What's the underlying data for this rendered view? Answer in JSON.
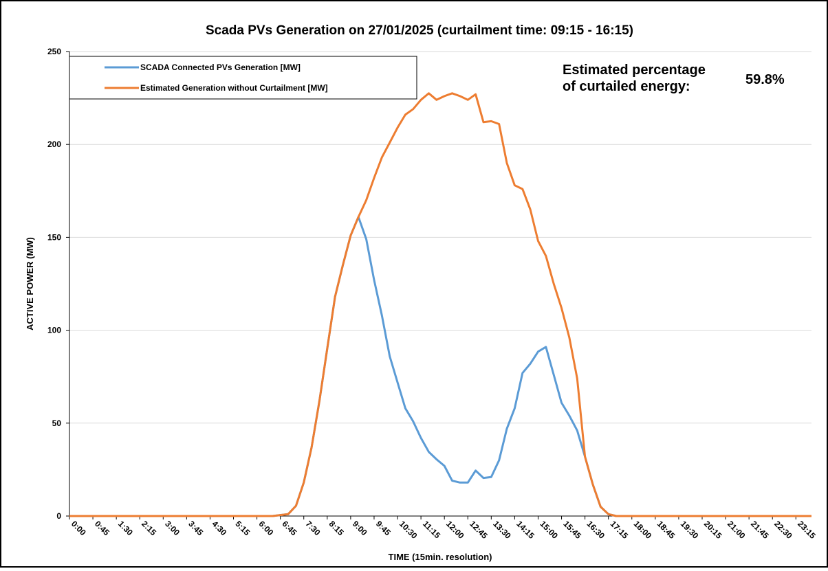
{
  "chart_data": {
    "type": "line",
    "title": "Scada PVs Generation on 27/01/2025 (curtailment time: 09:15 - 16:15)",
    "xlabel": "TIME (15min. resolution)",
    "ylabel": "ACTIVE POWER (MW)",
    "annotation_lines": [
      "Estimated percentage",
      "of curtailed energy:"
    ],
    "annotation_value": "59.8%",
    "categories": [
      "0:00",
      null,
      null,
      "0:45",
      null,
      null,
      "1:30",
      null,
      null,
      "2:15",
      null,
      null,
      "3:00",
      null,
      null,
      "3:45",
      null,
      null,
      "4:30",
      null,
      null,
      "5:15",
      null,
      null,
      "6:00",
      null,
      null,
      "6:45",
      null,
      null,
      "7:30",
      null,
      null,
      "8:15",
      null,
      null,
      "9:00",
      null,
      null,
      "9:45",
      null,
      null,
      "10:30",
      null,
      null,
      "11:15",
      null,
      null,
      "12:00",
      null,
      null,
      "12:45",
      null,
      null,
      "13:30",
      null,
      null,
      "14:15",
      null,
      null,
      "15:00",
      null,
      null,
      "15:45",
      null,
      null,
      "16:30",
      null,
      null,
      "17:15",
      null,
      null,
      "18:00",
      null,
      null,
      "18:45",
      null,
      null,
      "19:30",
      null,
      null,
      "20:15",
      null,
      null,
      "21:00",
      null,
      null,
      "21:45",
      null,
      null,
      "22:30",
      null,
      null,
      "23:15",
      null,
      null
    ],
    "series": [
      {
        "name": "SCADA Connected PVs Generation [MW]",
        "color": "#5b9bd5",
        "values": [
          0,
          0,
          0,
          0,
          0,
          0,
          0,
          0,
          0,
          0,
          0,
          0,
          0,
          0,
          0,
          0,
          0,
          0,
          0,
          0,
          0,
          0,
          0,
          0,
          0,
          0,
          0,
          0.5,
          1,
          5.5,
          18,
          37,
          62,
          90,
          118,
          135,
          151,
          161,
          149,
          127,
          108,
          86,
          72,
          58,
          51,
          42,
          34.5,
          30.5,
          27,
          19,
          18,
          18,
          24.5,
          20.5,
          21,
          30,
          47,
          58,
          77,
          82,
          88.5,
          91,
          76,
          61,
          54,
          46,
          32,
          17,
          5,
          1,
          0,
          0,
          0,
          0,
          0,
          0,
          0,
          0,
          0,
          0,
          0,
          0,
          0,
          0,
          0,
          0,
          0,
          0,
          0,
          0,
          0,
          0,
          0,
          0,
          0,
          0
        ]
      },
      {
        "name": "Estimated Generation without Curtailment [MW]",
        "color": "#ed7d31",
        "values": [
          0,
          0,
          0,
          0,
          0,
          0,
          0,
          0,
          0,
          0,
          0,
          0,
          0,
          0,
          0,
          0,
          0,
          0,
          0,
          0,
          0,
          0,
          0,
          0,
          0,
          0,
          0,
          0.5,
          1,
          5.5,
          18,
          37,
          62,
          90,
          118,
          135,
          151,
          161,
          170,
          182,
          193,
          201,
          209,
          216,
          219,
          224,
          227.5,
          224,
          226,
          227.5,
          226,
          224,
          227,
          212,
          212.5,
          211,
          190,
          178,
          176,
          165,
          148,
          140,
          125,
          112,
          96,
          74,
          32,
          17,
          5,
          1,
          0,
          0,
          0,
          0,
          0,
          0,
          0,
          0,
          0,
          0,
          0,
          0,
          0,
          0,
          0,
          0,
          0,
          0,
          0,
          0,
          0,
          0,
          0,
          0,
          0,
          0
        ]
      }
    ],
    "ylim": [
      0,
      250
    ],
    "yticks": [
      0,
      50,
      100,
      150,
      200,
      250
    ],
    "grid": true
  }
}
